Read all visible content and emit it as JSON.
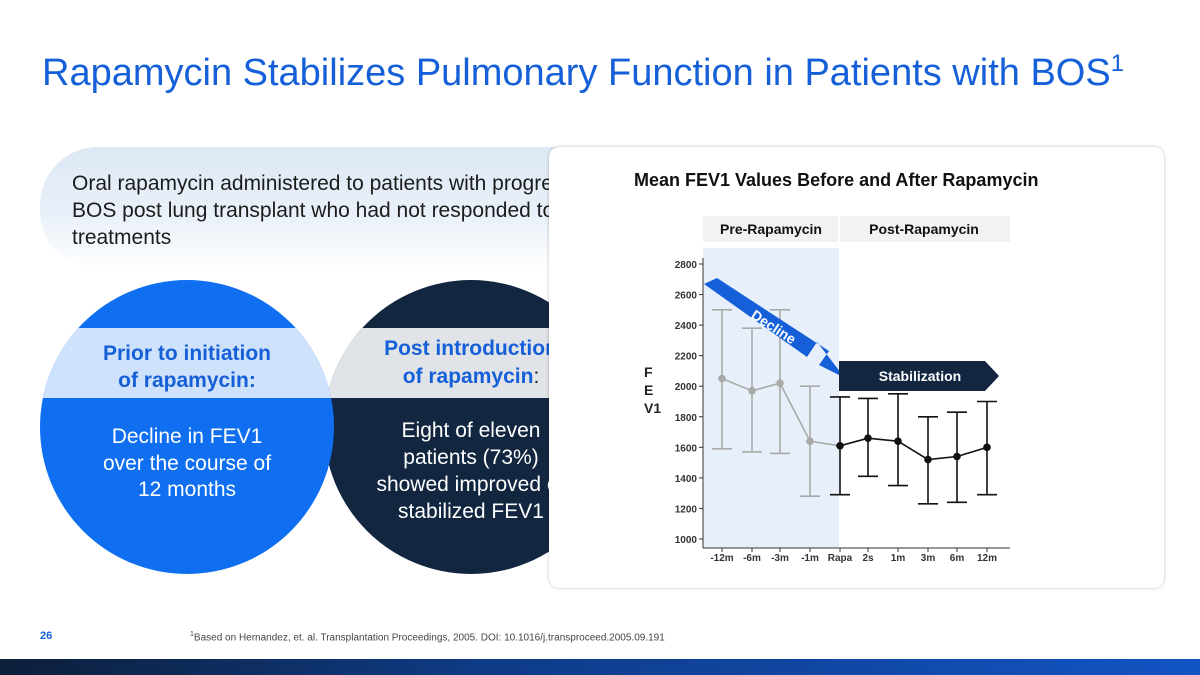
{
  "slide": {
    "title": "Rapamycin Stabilizes Pulmonary Function in Patients with BOS",
    "title_sup": "1",
    "intro": "Oral rapamycin administered to patients with progressive BOS post lung transplant who had not responded to other treatments",
    "left_circle": {
      "heading_line1": "Prior to initiation",
      "heading_line2": "of rapamycin:",
      "body_lines": [
        "Decline in FEV1",
        "over the course of",
        "12 months"
      ],
      "color": "#0f6ff0",
      "band_color": "#cfe2fb"
    },
    "right_circle": {
      "heading_line1": "Post introduction",
      "heading_line2_bold": "of rapamycin",
      "heading_line2_tail": ":",
      "body_lines": [
        "Eight of eleven",
        "patients (73%)",
        "showed improved or",
        "stabilized FEV1"
      ],
      "color": "#12263f",
      "band_color": "#e0e3e7"
    },
    "page_number": "26",
    "footnote_sup": "1",
    "footnote": "Based on Hernandez, et. al. Transplantation Proceedings, 2005. DOI: 10.1016/j.transproceed.2005.09.191"
  },
  "chart_data": {
    "type": "line",
    "title": "Mean FEV1 Values Before and After Rapamycin",
    "ylabel_letters": [
      "F",
      "E",
      "V1"
    ],
    "categories": [
      "-12m",
      "-6m",
      "-3m",
      "-1m",
      "Rapa",
      "2s",
      "1m",
      "3m",
      "6m",
      "12m"
    ],
    "yticks": [
      "2800",
      "2600",
      "2400",
      "2200",
      "2000",
      "1800",
      "1600",
      "1400",
      "1200",
      "1000"
    ],
    "ylim": [
      1000,
      2800
    ],
    "series": [
      {
        "values": [
          2050,
          1970,
          2020,
          1640,
          1610,
          1660,
          1640,
          1520,
          1540,
          1600
        ],
        "err_upper": [
          2500,
          2380,
          2500,
          2000,
          1930,
          1920,
          1950,
          1800,
          1830,
          1900
        ],
        "err_lower": [
          1590,
          1570,
          1560,
          1280,
          1290,
          1410,
          1350,
          1230,
          1240,
          1290
        ]
      }
    ],
    "phase_labels": [
      "Pre-Rapamycin",
      "Post-Rapamycin"
    ],
    "annotations": {
      "decline": "Decline",
      "stabilization": "Stabilization"
    },
    "colors": {
      "pre": "#a9a9a9",
      "post": "#111111",
      "pre_band": "#e7f0fa",
      "arrow": "#1560d8",
      "stab_arrow": "#12263f"
    }
  }
}
